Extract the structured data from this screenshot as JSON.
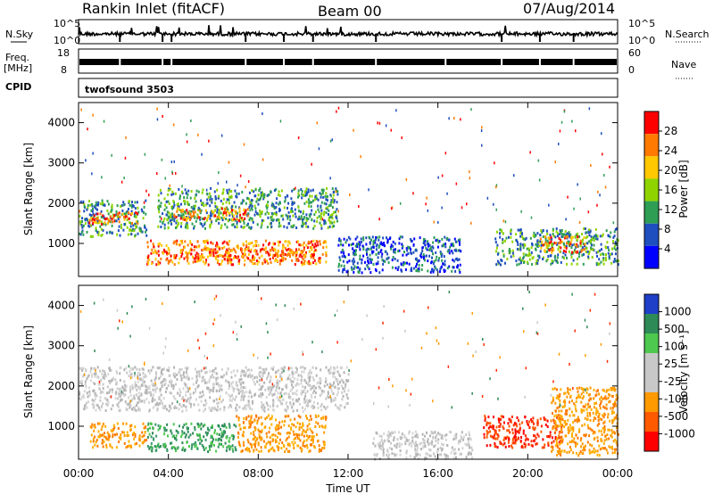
{
  "header": {
    "station": "Rankin Inlet (fitACF)",
    "beam": "Beam 00",
    "date": "07/Aug/2014"
  },
  "strips": {
    "nsky_label": "N.Sky",
    "nsky_top": "10^5",
    "nsky_bottom": "10^0",
    "nsearch_label": "N.Search",
    "nsearch_top": "10^5",
    "nsearch_bottom": "10^0",
    "freq_label_1": "Freq.",
    "freq_label_2": "[MHz]",
    "freq_top": "18",
    "freq_bottom": "8",
    "nave_label": "Nave",
    "nave_top": "60",
    "nave_bottom": "0",
    "cpid_label": "CPID",
    "cpid_value": "twofsound 3503"
  },
  "chart_data": [
    {
      "type": "heatmap",
      "name": "power",
      "ylabel": "Slant Range [km]",
      "colorbar_label": "Power [dB]",
      "colorbar_ticks": [
        "28",
        "24",
        "20",
        "16",
        "12",
        "8",
        "4"
      ],
      "colorbar_colors": [
        "#ff0000",
        "#ff7a00",
        "#ffc800",
        "#8fd400",
        "#2e9e55",
        "#1f4fbf",
        "#0000ff"
      ],
      "y_ticks": [
        "4000",
        "3000",
        "2000",
        "1000"
      ],
      "ylim": [
        180,
        4500
      ],
      "x_ticks": [
        "00:00",
        "04:00",
        "08:00",
        "12:00",
        "16:00",
        "20:00",
        "00:00"
      ],
      "xlim_hours": [
        0,
        24
      ],
      "echo_bands": [
        {
          "t_start": 0.0,
          "t_end": 3.0,
          "r_min": 1200,
          "r_max": 2100,
          "level": "green"
        },
        {
          "t_start": 0.4,
          "t_end": 2.6,
          "r_min": 1500,
          "r_max": 1800,
          "level": "red"
        },
        {
          "t_start": 3.5,
          "t_end": 11.5,
          "r_min": 1400,
          "r_max": 2400,
          "level": "green"
        },
        {
          "t_start": 4.2,
          "t_end": 7.5,
          "r_min": 1600,
          "r_max": 1900,
          "level": "orange"
        },
        {
          "t_start": 3.0,
          "t_end": 11.0,
          "r_min": 500,
          "r_max": 1100,
          "level": "orange"
        },
        {
          "t_start": 4.5,
          "t_end": 10.5,
          "r_min": 600,
          "r_max": 900,
          "level": "red"
        },
        {
          "t_start": 11.5,
          "t_end": 17.0,
          "r_min": 300,
          "r_max": 1200,
          "level": "blue"
        },
        {
          "t_start": 18.5,
          "t_end": 24.0,
          "r_min": 500,
          "r_max": 1400,
          "level": "green"
        },
        {
          "t_start": 20.5,
          "t_end": 22.5,
          "r_min": 800,
          "r_max": 1200,
          "level": "red"
        }
      ]
    },
    {
      "type": "heatmap",
      "name": "velocity",
      "ylabel": "Slant Range [km]",
      "colorbar_label": "Velocity [m s⁻¹]",
      "colorbar_ticks": [
        "1000",
        "500",
        "100",
        "25",
        "-25",
        "-100",
        "-500",
        "-1000"
      ],
      "colorbar_colors": [
        "#1f3fc8",
        "#2e8b57",
        "#4fc84f",
        "#c8c8c8",
        "#c8c8c8",
        "#ff9a00",
        "#ff5a00",
        "#ff0000"
      ],
      "y_ticks": [
        "4000",
        "3000",
        "2000",
        "1000"
      ],
      "ylim": [
        180,
        4500
      ],
      "x_ticks": [
        "00:00",
        "04:00",
        "08:00",
        "12:00",
        "16:00",
        "20:00",
        "00:00"
      ],
      "xlim_hours": [
        0,
        24
      ],
      "xlabel": "Time UT",
      "echo_bands": [
        {
          "t_start": 0.0,
          "t_end": 12.0,
          "r_min": 1400,
          "r_max": 2500,
          "level": "gray"
        },
        {
          "t_start": 0.5,
          "t_end": 3.0,
          "r_min": 500,
          "r_max": 1100,
          "level": "orange"
        },
        {
          "t_start": 3.0,
          "t_end": 7.0,
          "r_min": 400,
          "r_max": 1100,
          "level": "green"
        },
        {
          "t_start": 7.0,
          "t_end": 11.0,
          "r_min": 400,
          "r_max": 1300,
          "level": "orange"
        },
        {
          "t_start": 13.0,
          "t_end": 17.5,
          "r_min": 200,
          "r_max": 900,
          "level": "gray"
        },
        {
          "t_start": 18.0,
          "t_end": 21.5,
          "r_min": 500,
          "r_max": 1300,
          "level": "red"
        },
        {
          "t_start": 21.0,
          "t_end": 24.0,
          "r_min": 300,
          "r_max": 2000,
          "level": "orange"
        }
      ]
    }
  ]
}
